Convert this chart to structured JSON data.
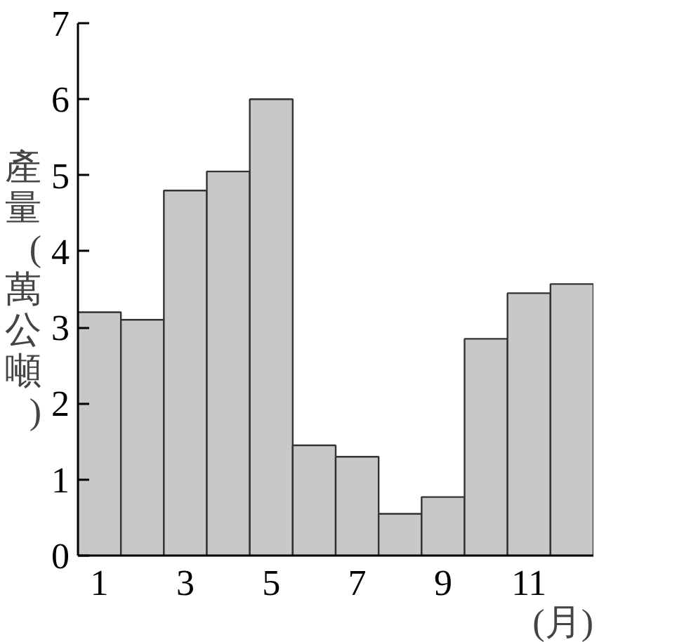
{
  "chart_data": {
    "type": "bar",
    "ylabel": "產量(萬公噸)",
    "xlabel": "(月)",
    "x": [
      1,
      2,
      3,
      4,
      5,
      6,
      7,
      8,
      9,
      10,
      11,
      12
    ],
    "values": [
      3.2,
      3.1,
      4.8,
      5.05,
      6.0,
      1.45,
      1.3,
      0.55,
      0.77,
      2.85,
      3.45,
      3.57
    ],
    "color": "#c8c8c8",
    "xlim": [
      0.5,
      12.5
    ],
    "xticks": [
      1,
      3,
      5,
      7,
      9,
      11
    ],
    "ylim": [
      0,
      7
    ],
    "yticks": [
      0,
      1,
      2,
      3,
      4,
      5,
      6,
      7
    ],
    "grid": false
  }
}
